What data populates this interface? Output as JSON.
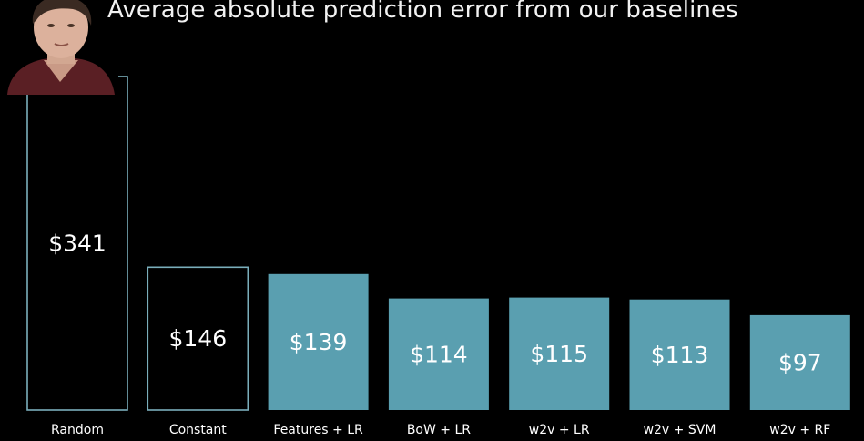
{
  "slide": {
    "title": "Average absolute prediction error from our baselines"
  },
  "chart_data": {
    "type": "bar",
    "title": "Average absolute prediction error from our baselines",
    "categories": [
      "Random",
      "Constant",
      "Features + LR",
      "BoW + LR",
      "w2v + LR",
      "w2v + SVM",
      "w2v + RF"
    ],
    "values": [
      341,
      146,
      139,
      114,
      115,
      113,
      97
    ],
    "value_labels": [
      "$341",
      "$146",
      "$139",
      "$114",
      "$115",
      "$113",
      "$97"
    ],
    "bar_styles": [
      "outline",
      "outline",
      "filled",
      "filled",
      "filled",
      "filled",
      "filled"
    ],
    "xlabel": "",
    "ylabel": "",
    "ylim": [
      0,
      341
    ],
    "grid": false,
    "colors": {
      "fill": "#5a9fb0",
      "outline": "#7aaebb",
      "label": "#ffffff",
      "background": "#000000"
    }
  }
}
